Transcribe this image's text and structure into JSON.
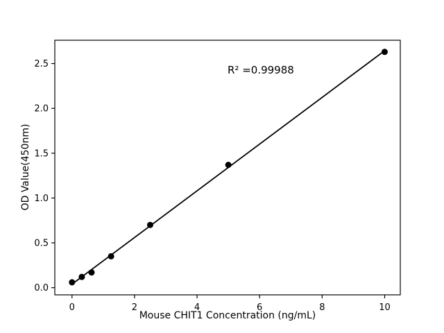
{
  "chart_data": {
    "type": "scatter",
    "title": "",
    "xlabel": "Mouse CHIT1 Concentration (ng/mL)",
    "ylabel": "OD Value(450nm)",
    "annotation": "R² =0.99988",
    "r_squared": 0.99988,
    "x": [
      0,
      0.313,
      0.625,
      1.25,
      2.5,
      5,
      10
    ],
    "y": [
      0.06,
      0.12,
      0.17,
      0.35,
      0.7,
      1.37,
      2.63
    ],
    "fit_line": true,
    "xticks": [
      0,
      2,
      4,
      6,
      8,
      10
    ],
    "xtick_labels": [
      "0",
      "2",
      "4",
      "6",
      "8",
      "10"
    ],
    "yticks": [
      0.0,
      0.5,
      1.0,
      1.5,
      2.0,
      2.5
    ],
    "ytick_labels": [
      "0.0",
      "0.5",
      "1.0",
      "1.5",
      "2.0",
      "2.5"
    ],
    "xlim": [
      -0.55,
      10.5
    ],
    "ylim": [
      -0.08,
      2.76
    ],
    "grid": false,
    "legend": null,
    "marker_color": "#000000",
    "line_color": "#000000",
    "axis_color": "#000000",
    "background": "#ffffff"
  }
}
